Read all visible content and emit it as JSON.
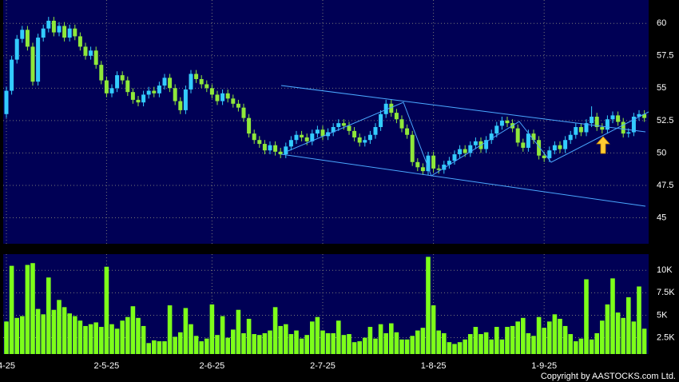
{
  "chart_data": [
    {
      "type": "candlestick",
      "up_color": "#33ccff",
      "down_color": "#8fe83a",
      "ylim": [
        43,
        61.8
      ],
      "yticks": [
        45,
        47.5,
        50,
        52.5,
        55,
        57.5,
        60
      ],
      "grid": true,
      "open": [
        53.0,
        54.8,
        57.2,
        58.8,
        59.5,
        58.2,
        55.5,
        58.9,
        59.6,
        60.2,
        59.3,
        59.8,
        58.9,
        59.6,
        59.0,
        58.2,
        57.5,
        57.9,
        56.8,
        55.6,
        54.6,
        55.0,
        56.0,
        55.6,
        54.7,
        54.1,
        53.9,
        54.5,
        54.8,
        54.6,
        55.2,
        55.8,
        55.0,
        54.0,
        53.3,
        54.9,
        56.1,
        55.7,
        55.3,
        55.0,
        54.5,
        54.0,
        54.6,
        54.2,
        53.8,
        53.5,
        52.7,
        51.5,
        51.0,
        50.7,
        50.2,
        50.6,
        50.1,
        49.9,
        50.5,
        51.0,
        51.4,
        51.2,
        50.9,
        51.5,
        51.8,
        51.3,
        51.6,
        52.0,
        52.3,
        52.1,
        51.7,
        51.2,
        50.8,
        51.0,
        51.4,
        52.0,
        53.0,
        53.8,
        53.1,
        52.6,
        51.9,
        51.4,
        49.3,
        48.9,
        48.6,
        49.8,
        48.8,
        48.7,
        49.1,
        49.4,
        49.9,
        50.3,
        50.0,
        50.6,
        50.9,
        50.3,
        51.0,
        51.5,
        52.1,
        52.5,
        52.3,
        51.9,
        50.8,
        50.4,
        51.5,
        51.0,
        49.8,
        49.6,
        50.2,
        50.6,
        50.3,
        51.0,
        51.4,
        52.0,
        51.6,
        52.3,
        52.8,
        52.0,
        51.8,
        52.6,
        52.9,
        52.4,
        51.5,
        51.6,
        52.8,
        53.0
      ],
      "high": [
        55.1,
        57.5,
        59.1,
        59.8,
        59.8,
        58.5,
        59.2,
        59.9,
        60.5,
        60.5,
        60.1,
        60.1,
        59.9,
        59.9,
        59.3,
        58.5,
        58.2,
        58.2,
        57.1,
        55.9,
        55.3,
        56.3,
        56.3,
        55.9,
        55.0,
        54.4,
        54.8,
        55.1,
        55.1,
        55.5,
        56.1,
        56.1,
        55.3,
        54.3,
        55.2,
        56.4,
        56.4,
        56.0,
        55.6,
        55.3,
        54.8,
        54.9,
        54.9,
        54.5,
        54.1,
        53.8,
        53.0,
        51.8,
        51.3,
        51.0,
        50.9,
        50.9,
        50.4,
        50.8,
        51.3,
        51.7,
        51.7,
        51.5,
        51.8,
        52.1,
        52.1,
        51.9,
        52.3,
        52.6,
        52.6,
        52.4,
        52.0,
        51.5,
        51.3,
        51.7,
        52.3,
        53.3,
        54.1,
        54.1,
        53.4,
        52.9,
        52.2,
        51.7,
        49.6,
        49.2,
        50.1,
        50.1,
        49.1,
        49.4,
        49.7,
        50.2,
        50.6,
        50.6,
        50.9,
        51.2,
        51.2,
        51.3,
        51.8,
        52.4,
        52.8,
        52.8,
        52.6,
        52.2,
        51.1,
        51.8,
        51.8,
        51.3,
        50.1,
        50.5,
        50.9,
        50.9,
        51.3,
        51.7,
        52.3,
        52.3,
        52.6,
        53.6,
        53.1,
        52.3,
        52.9,
        53.2,
        53.2,
        52.7,
        51.9,
        53.1,
        53.3,
        53.3
      ],
      "low": [
        52.7,
        54.5,
        56.9,
        58.5,
        57.9,
        55.2,
        55.2,
        58.6,
        59.3,
        59.0,
        59.0,
        58.6,
        58.6,
        58.7,
        57.9,
        57.2,
        57.2,
        56.5,
        55.3,
        54.3,
        54.3,
        54.7,
        55.3,
        54.4,
        53.8,
        53.6,
        53.6,
        54.2,
        54.3,
        54.3,
        54.9,
        54.7,
        53.7,
        53.0,
        53.0,
        54.6,
        55.4,
        55.0,
        54.7,
        54.2,
        53.7,
        53.7,
        53.9,
        53.5,
        53.2,
        52.4,
        51.2,
        50.7,
        50.4,
        49.9,
        49.9,
        49.8,
        49.6,
        49.6,
        50.2,
        50.7,
        50.9,
        50.6,
        50.6,
        51.2,
        51.0,
        51.0,
        51.3,
        51.7,
        51.8,
        51.4,
        50.9,
        50.5,
        50.5,
        50.7,
        51.1,
        51.7,
        52.7,
        52.8,
        52.3,
        51.6,
        51.1,
        49.0,
        48.6,
        48.3,
        48.3,
        48.5,
        48.4,
        48.4,
        48.8,
        49.1,
        49.6,
        49.7,
        49.7,
        50.3,
        50.0,
        50.0,
        50.7,
        51.2,
        51.8,
        52.0,
        51.6,
        50.5,
        50.1,
        50.1,
        50.7,
        49.5,
        49.3,
        49.3,
        49.9,
        50.0,
        50.0,
        50.7,
        51.1,
        51.3,
        51.3,
        52.0,
        51.7,
        51.5,
        51.5,
        52.3,
        52.1,
        51.2,
        51.2,
        51.3,
        52.5,
        52.4
      ],
      "close": [
        54.8,
        57.2,
        58.8,
        59.5,
        58.2,
        55.5,
        58.9,
        59.6,
        60.2,
        59.3,
        59.8,
        58.9,
        59.6,
        59.0,
        58.2,
        57.5,
        57.9,
        56.8,
        55.6,
        54.6,
        55.0,
        56.0,
        55.6,
        54.7,
        54.1,
        53.9,
        54.5,
        54.8,
        54.6,
        55.2,
        55.8,
        55.0,
        54.0,
        53.3,
        54.9,
        56.1,
        55.7,
        55.3,
        55.0,
        54.5,
        54.0,
        54.6,
        54.2,
        53.8,
        53.5,
        52.7,
        51.5,
        51.0,
        50.7,
        50.2,
        50.6,
        50.1,
        49.9,
        50.5,
        51.0,
        51.4,
        51.2,
        50.9,
        51.5,
        51.8,
        51.3,
        51.6,
        52.0,
        52.3,
        52.1,
        51.7,
        51.2,
        50.8,
        51.0,
        51.4,
        52.0,
        53.0,
        53.8,
        53.1,
        52.6,
        51.9,
        51.4,
        49.3,
        48.9,
        48.6,
        49.8,
        48.8,
        48.7,
        49.1,
        49.4,
        49.9,
        50.3,
        50.0,
        50.6,
        50.9,
        50.3,
        51.0,
        51.5,
        52.1,
        52.5,
        52.3,
        51.9,
        50.8,
        50.4,
        51.5,
        51.0,
        49.8,
        49.6,
        50.2,
        50.6,
        50.3,
        51.0,
        51.4,
        52.0,
        51.6,
        52.3,
        52.8,
        52.0,
        51.8,
        52.6,
        52.9,
        52.4,
        51.5,
        51.6,
        52.8,
        53.0,
        52.7
      ]
    },
    {
      "type": "bar",
      "color": "#7dff1a",
      "ylim": [
        680,
        11800
      ],
      "yticks": [
        {
          "value": 2500,
          "label": "2.5K"
        },
        {
          "value": 5000,
          "label": "5K"
        },
        {
          "value": 7500,
          "label": "7.5K"
        },
        {
          "value": 10000,
          "label": "10K"
        }
      ],
      "categories": [
        "4-25",
        null,
        null,
        null,
        null,
        null,
        null,
        null,
        null,
        null,
        null,
        null,
        null,
        null,
        null,
        null,
        null,
        null,
        null,
        "2-5-25",
        null,
        null,
        null,
        null,
        null,
        null,
        null,
        null,
        null,
        null,
        null,
        null,
        null,
        null,
        null,
        null,
        null,
        null,
        null,
        "2-6-25",
        null,
        null,
        null,
        null,
        null,
        null,
        null,
        null,
        null,
        null,
        null,
        null,
        null,
        null,
        null,
        null,
        null,
        null,
        null,
        null,
        "2-7-25",
        null,
        null,
        null,
        null,
        null,
        null,
        null,
        null,
        null,
        null,
        null,
        null,
        null,
        null,
        null,
        null,
        null,
        null,
        null,
        null,
        "1-8-25",
        null,
        null,
        null,
        null,
        null,
        null,
        null,
        null,
        null,
        null,
        null,
        null,
        null,
        null,
        null,
        null,
        null,
        null,
        null,
        null,
        "1-9-25",
        null,
        null,
        null,
        null,
        null,
        null,
        null,
        null,
        null,
        null,
        null,
        null,
        null,
        null,
        null,
        null,
        null,
        null,
        null
      ],
      "values": [
        4300,
        10500,
        4700,
        4900,
        10600,
        10800,
        5700,
        5100,
        9200,
        5600,
        6700,
        5900,
        5200,
        4900,
        4400,
        3800,
        4000,
        4200,
        3700,
        10400,
        4000,
        3500,
        4400,
        4800,
        6000,
        4700,
        3800,
        1900,
        2200,
        2100,
        2100,
        6100,
        2600,
        3100,
        5800,
        4000,
        2700,
        2100,
        2400,
        6200,
        2800,
        4900,
        2500,
        3400,
        5600,
        3000,
        4600,
        2900,
        2800,
        3000,
        3300,
        5900,
        3800,
        4000,
        2900,
        3300,
        2400,
        2800,
        4300,
        4800,
        3300,
        3000,
        3000,
        4400,
        2800,
        2900,
        2000,
        2100,
        2500,
        3700,
        2400,
        4000,
        3000,
        4100,
        3100,
        2300,
        2300,
        2700,
        3300,
        3600,
        11500,
        6100,
        3300,
        3000,
        2000,
        1800,
        2000,
        2300,
        2900,
        3700,
        2900,
        3100,
        2300,
        3700,
        2300,
        3700,
        3800,
        4300,
        4700,
        3000,
        2700,
        4800,
        3600,
        4300,
        5100,
        4600,
        3800,
        2900,
        2100,
        2400,
        9000,
        2300,
        3000,
        4400,
        6200,
        9100,
        5300,
        4700,
        7000,
        4300,
        8200,
        3500
      ]
    }
  ],
  "copyright": "Copyright by AASTOCKS.com Ltd."
}
